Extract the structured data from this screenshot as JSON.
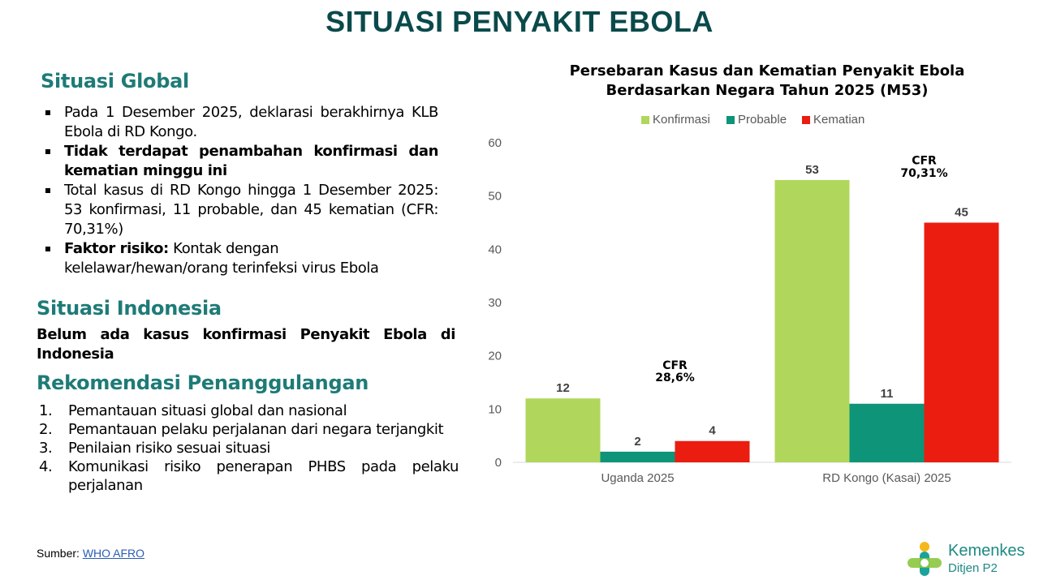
{
  "page": {
    "title": "SITUASI PENYAKIT EBOLA"
  },
  "global": {
    "heading": "Situasi Global",
    "bullets": [
      {
        "text": "Pada 1 Desember 2025, deklarasi berakhirnya KLB Ebola di RD Kongo."
      },
      {
        "text": "Tidak terdapat penambahan konfirmasi dan kematian minggu ini"
      },
      {
        "text": "Total kasus di RD Kongo hingga 1 Desember 2025: 53 konfirmasi, 11  probable, dan 45 kematian (CFR: 70,31%)"
      },
      {
        "bold": "Faktor risiko:",
        "text": " Kontak dengan kelelawar/hewan/orang terinfeksi virus Ebola"
      }
    ]
  },
  "indonesia": {
    "heading": "Situasi Indonesia",
    "text": "Belum ada kasus konfirmasi Penyakit Ebola di Indonesia"
  },
  "recommendations": {
    "heading": "Rekomendasi Penanggulangan",
    "items": [
      {
        "num": "1.",
        "text": "Pemantauan situasi global dan nasional"
      },
      {
        "num": "2.",
        "text": "Pemantauan pelaku perjalanan dari negara terjangkit"
      },
      {
        "num": "3.",
        "text": "Penilaian risiko sesuai situasi"
      },
      {
        "num": "4.",
        "text": "Komunikasi risiko penerapan PHBS pada pelaku perjalanan"
      }
    ]
  },
  "source": {
    "label": "Sumber: ",
    "link": "WHO AFRO"
  },
  "logo": {
    "name": "Kemenkes",
    "sub": "Ditjen P2"
  },
  "chart_data": {
    "type": "bar",
    "title_line1": "Persebaran Kasus dan Kematian Penyakit Ebola",
    "title_line2": "Berdasarkan Negara Tahun 2025 (M53)",
    "categories": [
      "Uganda 2025",
      "RD Kongo (Kasai) 2025"
    ],
    "series": [
      {
        "name": "Konfirmasi",
        "color": "#b0d75b",
        "values": [
          12,
          53
        ]
      },
      {
        "name": "Probable",
        "color": "#0e9478",
        "values": [
          2,
          11
        ]
      },
      {
        "name": "Kematian",
        "color": "#ea1d10",
        "values": [
          4,
          45
        ]
      }
    ],
    "ylim": [
      0,
      60
    ],
    "yticks": [
      0,
      10,
      20,
      30,
      40,
      50,
      60
    ],
    "grid": false,
    "legend": "top",
    "annotations": [
      {
        "category": 0,
        "line1": "CFR",
        "line2": "28,6%"
      },
      {
        "category": 1,
        "line1": "CFR",
        "line2": "70,31%"
      }
    ]
  }
}
